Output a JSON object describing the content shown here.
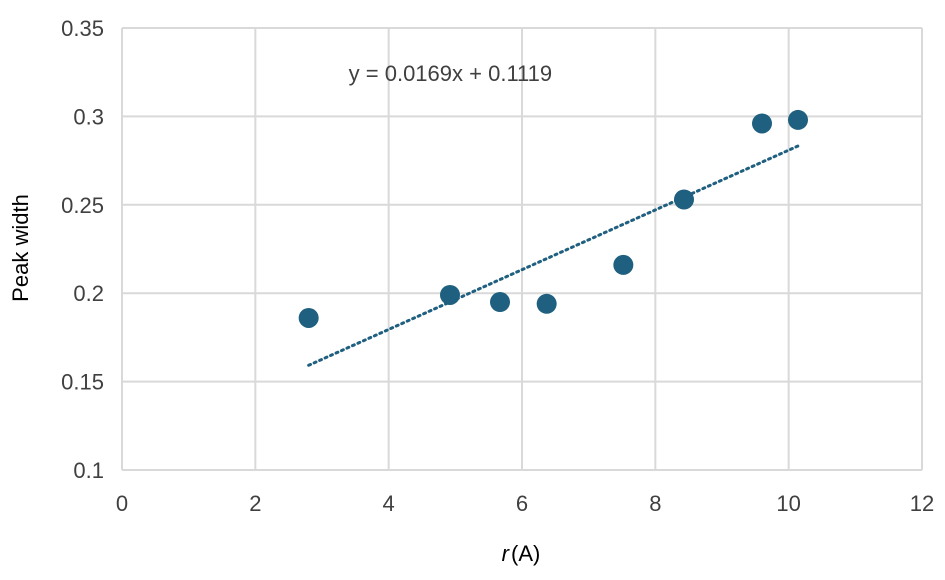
{
  "chart_data": {
    "type": "scatter",
    "title": "",
    "xlabel_italic": "r",
    "xlabel_rest": "(A)",
    "ylabel": "Peak width",
    "xlim": [
      0,
      12
    ],
    "ylim": [
      0.1,
      0.35
    ],
    "x_ticks": [
      0,
      2,
      4,
      6,
      8,
      10,
      12
    ],
    "x_tick_labels": [
      "0",
      "2",
      "4",
      "6",
      "8",
      "10",
      "12"
    ],
    "y_ticks": [
      0.1,
      0.15,
      0.2,
      0.25,
      0.3,
      0.35
    ],
    "y_tick_labels": [
      "0.1",
      "0.15",
      "0.2",
      "0.25",
      "0.3",
      "0.35"
    ],
    "grid": true,
    "marker_color": "#1f5f7f",
    "trendline_color": "#1f5f7f",
    "series": [
      {
        "x": [
          2.8,
          4.92,
          5.67,
          6.37,
          7.52,
          8.43,
          9.6,
          10.14
        ],
        "y": [
          0.186,
          0.199,
          0.195,
          0.194,
          0.216,
          0.253,
          0.296,
          0.298
        ]
      }
    ],
    "trendline": {
      "slope": 0.0169,
      "intercept": 0.1119,
      "x_range": [
        2.8,
        10.14
      ],
      "style": "dotted"
    },
    "annotations": [
      {
        "text": "y = 0.0169x + 0.1119",
        "x": 3.4,
        "y": 0.32
      }
    ]
  }
}
